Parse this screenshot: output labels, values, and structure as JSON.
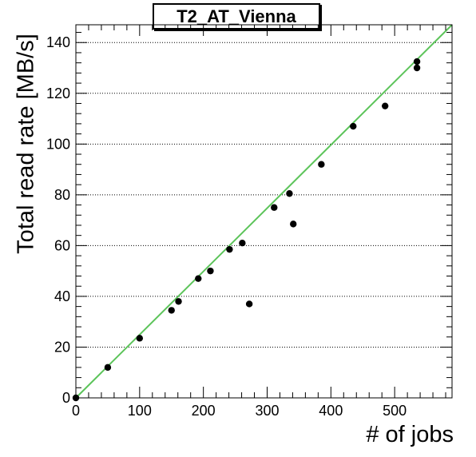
{
  "chart_data": {
    "type": "scatter",
    "title": "T2_AT_Vienna",
    "xlabel": "# of jobs",
    "ylabel": "Total read rate [MB/s]",
    "xlim": [
      0,
      590
    ],
    "ylim": [
      0,
      147
    ],
    "xticks": [
      0,
      100,
      200,
      300,
      400,
      500
    ],
    "yticks": [
      0,
      20,
      40,
      60,
      80,
      100,
      120,
      140
    ],
    "grid": "horizontal-dotted",
    "points": [
      {
        "x": 0,
        "y": 0
      },
      {
        "x": 50,
        "y": 12
      },
      {
        "x": 100,
        "y": 23.5
      },
      {
        "x": 150,
        "y": 34.5
      },
      {
        "x": 161,
        "y": 38
      },
      {
        "x": 192,
        "y": 47
      },
      {
        "x": 211,
        "y": 50
      },
      {
        "x": 241,
        "y": 58.5
      },
      {
        "x": 261,
        "y": 61
      },
      {
        "x": 272,
        "y": 37
      },
      {
        "x": 311,
        "y": 75
      },
      {
        "x": 335,
        "y": 80.5
      },
      {
        "x": 341,
        "y": 68.5
      },
      {
        "x": 385,
        "y": 92
      },
      {
        "x": 435,
        "y": 107
      },
      {
        "x": 485,
        "y": 115
      },
      {
        "x": 535,
        "y": 130
      },
      {
        "x": 535,
        "y": 132.5
      }
    ],
    "fit_line": {
      "x": [
        0,
        590
      ],
      "y": [
        0,
        147
      ],
      "color": "#5cc45a"
    },
    "marker_color": "#000000"
  }
}
